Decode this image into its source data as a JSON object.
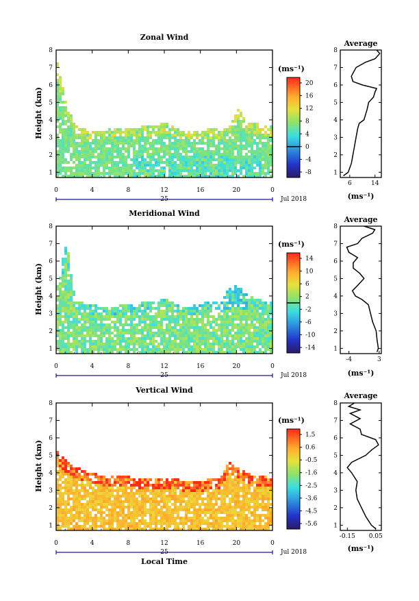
{
  "figure": {
    "local_time_label": "Local Time",
    "day_label": "25",
    "month_label": "Jul 2018"
  },
  "chart_data": [
    {
      "type": "heatmap",
      "title": "Zonal Wind",
      "xlabel": "",
      "ylabel": "Height (km)",
      "xlim": [
        0,
        24
      ],
      "ylim": [
        0.7,
        8
      ],
      "x_ticks": [
        "0",
        "4",
        "8",
        "12",
        "16",
        "20",
        "0"
      ],
      "y_ticks": [
        "1",
        "2",
        "3",
        "4",
        "5",
        "6",
        "7",
        "8"
      ],
      "colorbar": {
        "unit": "(ms⁻¹)",
        "min": -8,
        "max": 22,
        "ticks": [
          "20",
          "16",
          "12",
          "8",
          "4",
          "0",
          "-4",
          "-8"
        ],
        "zero_line": 0
      },
      "wind_top_km": [
        7.2,
        4.8,
        3.6,
        3.4,
        3.3,
        3.3,
        3.4,
        3.5,
        3.5,
        3.5,
        3.6,
        3.6,
        3.8,
        3.5,
        3.3,
        3.3,
        3.3,
        3.4,
        3.4,
        3.5,
        4.6,
        3.8,
        3.8,
        3.6,
        3.6
      ],
      "average_profile": {
        "title": "Average",
        "xlabel": "(ms⁻¹)",
        "x_ticks": [
          "6",
          "14"
        ],
        "xlim": [
          3,
          16
        ],
        "height_km": [
          0.8,
          1.0,
          1.5,
          2.0,
          2.5,
          3.0,
          3.5,
          3.8,
          4.0,
          4.3,
          4.6,
          5.0,
          5.3,
          5.6,
          5.8,
          6.0,
          6.2,
          6.5,
          7.0,
          7.3,
          7.5,
          7.8,
          8.0
        ],
        "value": [
          4,
          5.5,
          6.5,
          7,
          7.5,
          8,
          8.5,
          9,
          10.5,
          11,
          11.5,
          12,
          13.5,
          14,
          14.5,
          10,
          7,
          6.5,
          8,
          11,
          14,
          15.5,
          14.5
        ]
      }
    },
    {
      "type": "heatmap",
      "title": "Meridional Wind",
      "xlabel": "",
      "ylabel": "Height (km)",
      "xlim": [
        0,
        24
      ],
      "ylim": [
        0.7,
        8
      ],
      "x_ticks": [
        "0",
        "4",
        "8",
        "12",
        "16",
        "20",
        "0"
      ],
      "y_ticks": [
        "1",
        "2",
        "3",
        "4",
        "5",
        "6",
        "7",
        "8"
      ],
      "colorbar": {
        "unit": "(ms⁻¹)",
        "min": -16,
        "max": 16,
        "ticks": [
          "14",
          "10",
          "6",
          "2",
          "-2",
          "-6",
          "-10",
          "-14"
        ],
        "zero_line": 0
      },
      "wind_top_km": [
        4.5,
        7.2,
        3.6,
        3.5,
        3.4,
        3.3,
        3.3,
        3.4,
        3.5,
        3.5,
        3.6,
        3.6,
        3.8,
        3.5,
        3.3,
        3.4,
        3.5,
        3.6,
        3.5,
        4.3,
        4.6,
        4.0,
        3.8,
        3.6,
        3.5
      ],
      "average_profile": {
        "title": "Average",
        "xlabel": "(ms⁻¹)",
        "x_ticks": [
          "-4",
          "3"
        ],
        "xlim": [
          -6,
          3.5
        ],
        "height_km": [
          0.8,
          1.0,
          1.5,
          2.0,
          2.5,
          3.0,
          3.5,
          3.8,
          4.0,
          4.3,
          4.6,
          5.0,
          5.3,
          5.6,
          5.9,
          6.2,
          6.5,
          6.8,
          7.0,
          7.3,
          7.6,
          7.8,
          8.0
        ],
        "value": [
          2.5,
          2.8,
          2.5,
          2.3,
          1.5,
          1.0,
          0.5,
          -1,
          -2.5,
          -3.2,
          -2,
          -0.5,
          -1.5,
          -3,
          -3,
          -2,
          -4,
          -4.5,
          -2,
          -1,
          1.5,
          2,
          -0.5
        ]
      }
    },
    {
      "type": "heatmap",
      "title": "Vertical Wind",
      "xlabel": "Local Time",
      "ylabel": "Height (km)",
      "xlim": [
        0,
        24
      ],
      "ylim": [
        0.7,
        8
      ],
      "x_ticks": [
        "0",
        "4",
        "8",
        "12",
        "16",
        "20",
        "0"
      ],
      "y_ticks": [
        "1",
        "2",
        "3",
        "4",
        "5",
        "6",
        "7",
        "8"
      ],
      "colorbar": {
        "unit": "(ms⁻¹)",
        "min": -6,
        "max": 2,
        "ticks": [
          "1.5",
          "0.6",
          "-0.5",
          "-1.6",
          "-2.5",
          "-3.6",
          "-4.5",
          "-5.6"
        ],
        "zero_line": null
      },
      "wind_top_km": [
        5.2,
        4.6,
        4.3,
        4.1,
        3.9,
        3.8,
        3.8,
        3.8,
        3.7,
        3.6,
        3.6,
        3.6,
        3.5,
        3.7,
        3.4,
        3.4,
        3.4,
        3.6,
        3.6,
        4.6,
        4.2,
        4.0,
        3.8,
        3.7,
        3.6
      ],
      "average_profile": {
        "title": "Average",
        "xlabel": "(ms⁻¹)",
        "x_ticks": [
          "-0.15",
          "0.05"
        ],
        "xlim": [
          -0.2,
          0.09
        ],
        "height_km": [
          0.8,
          1.0,
          1.5,
          2.0,
          2.5,
          3.0,
          3.5,
          4.0,
          4.3,
          4.6,
          5.0,
          5.3,
          5.6,
          5.9,
          6.2,
          6.5,
          6.8,
          7.1,
          7.4,
          7.6,
          7.8,
          8.0
        ],
        "value": [
          0.05,
          0.02,
          -0.02,
          -0.05,
          -0.08,
          -0.09,
          -0.08,
          -0.12,
          -0.15,
          -0.12,
          -0.02,
          0.02,
          0.07,
          0.05,
          -0.05,
          -0.06,
          -0.13,
          -0.06,
          -0.13,
          -0.06,
          -0.14,
          -0.1
        ]
      }
    }
  ]
}
